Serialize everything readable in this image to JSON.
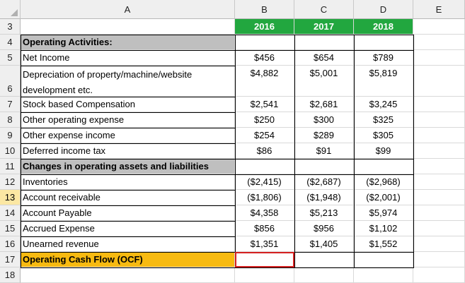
{
  "columns": [
    "A",
    "B",
    "C",
    "D",
    "E"
  ],
  "rows": [
    {
      "num": "3",
      "a": "",
      "b": "2016",
      "c": "2017",
      "d": "2018"
    },
    {
      "num": "4",
      "a": "Operating Activities:",
      "b": "",
      "c": "",
      "d": ""
    },
    {
      "num": "5",
      "a": "Net Income",
      "b": "$456",
      "c": "$654",
      "d": "$789"
    },
    {
      "num": "6",
      "a": "Depreciation of property/machine/website development etc.",
      "b": "$4,882",
      "c": "$5,001",
      "d": "$5,819"
    },
    {
      "num": "7",
      "a": "Stock based Compensation",
      "b": "$2,541",
      "c": "$2,681",
      "d": "$3,245"
    },
    {
      "num": "8",
      "a": "Other operating expense",
      "b": "$250",
      "c": "$300",
      "d": "$325"
    },
    {
      "num": "9",
      "a": "Other expense income",
      "b": "$254",
      "c": "$289",
      "d": "$305"
    },
    {
      "num": "10",
      "a": "Deferred income tax",
      "b": "$86",
      "c": "$91",
      "d": "$99"
    },
    {
      "num": "11",
      "a": "Changes in operating assets and liabilities",
      "b": "",
      "c": "",
      "d": ""
    },
    {
      "num": "12",
      "a": "Inventories",
      "b": "($2,415)",
      "c": "($2,687)",
      "d": "($2,968)"
    },
    {
      "num": "13",
      "a": "Account receivable",
      "b": "($1,806)",
      "c": "($1,948)",
      "d": "($2,001)"
    },
    {
      "num": "14",
      "a": "Account Payable",
      "b": "$4,358",
      "c": "$5,213",
      "d": "$5,974"
    },
    {
      "num": "15",
      "a": "Accrued Expense",
      "b": "$856",
      "c": "$956",
      "d": "$1,102"
    },
    {
      "num": "16",
      "a": "Unearned revenue",
      "b": "$1,351",
      "c": "$1,405",
      "d": "$1,552"
    },
    {
      "num": "17",
      "a": "Operating Cash Flow (OCF)",
      "b": "",
      "c": "",
      "d": ""
    },
    {
      "num": "18",
      "a": "",
      "b": "",
      "c": "",
      "d": ""
    }
  ],
  "colors": {
    "header_green": "#22a73f",
    "ocf_orange": "#f7ba11",
    "section_gray": "#bfbfbf",
    "selection_red": "#d42020",
    "active_row_header": "#fbe7a3"
  },
  "selected_cell": "B17",
  "active_row": "13"
}
